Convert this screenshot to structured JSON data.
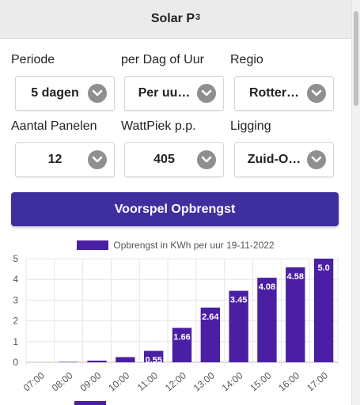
{
  "header": {
    "title": "Solar P",
    "title_sup": "3"
  },
  "form": {
    "periode": {
      "label": "Periode",
      "value": "5 dagen"
    },
    "dag_of_uur": {
      "label": "per Dag of Uur",
      "value": "Per uu…"
    },
    "regio": {
      "label": "Regio",
      "value": "Rotter…"
    },
    "panelen": {
      "label": "Aantal Panelen",
      "value": "12"
    },
    "wattpiek": {
      "label": "WattPiek p.p.",
      "value": "405"
    },
    "ligging": {
      "label": "Ligging",
      "value": "Zuid-O…"
    }
  },
  "action": {
    "forecast_label": "Voorspel Opbrengst"
  },
  "colors": {
    "accent": "#3f2f9e",
    "bar": "#4a1fa3"
  },
  "chart_data": {
    "type": "bar",
    "legend": "Opbrengst in KWh per uur 19-11-2022",
    "categories": [
      "07:00",
      "08:00",
      "09:00",
      "10:00",
      "11:00",
      "12:00",
      "13:00",
      "14:00",
      "15:00",
      "16:00",
      "17:00"
    ],
    "values": [
      0.0,
      0.02,
      0.08,
      0.25,
      0.55,
      1.66,
      2.64,
      3.45,
      4.08,
      4.58,
      5.0
    ],
    "data_labels": [
      "",
      "",
      "",
      "",
      "0.55",
      "1.66",
      "2.64",
      "3.45",
      "4.08",
      "4.58",
      "5.0"
    ],
    "yticks": [
      "0",
      "1",
      "2",
      "3",
      "4",
      "5"
    ],
    "ylim": [
      0,
      5
    ],
    "grid": true
  }
}
